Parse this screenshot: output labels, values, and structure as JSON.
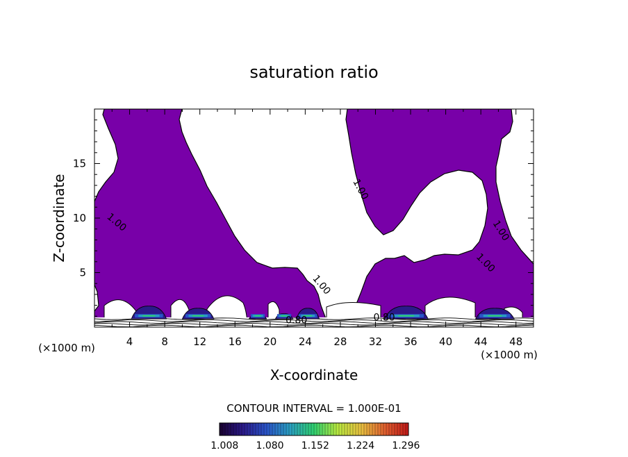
{
  "chart_data": {
    "type": "contour",
    "title": "saturation ratio",
    "xlabel": "X-coordinate",
    "ylabel": "Z-coordinate",
    "x_unit_left": "(×1000 m)",
    "x_unit_right": "(×1000 m)",
    "xlim": [
      0,
      50
    ],
    "ylim": [
      0,
      20
    ],
    "xticks": [
      "4",
      "8",
      "12",
      "16",
      "20",
      "24",
      "28",
      "32",
      "36",
      "40",
      "44",
      "48"
    ],
    "yticks": [
      "5",
      "10",
      "15"
    ],
    "xtick_values": [
      4,
      8,
      12,
      16,
      20,
      24,
      28,
      32,
      36,
      40,
      44,
      48
    ],
    "ytick_values": [
      5,
      10,
      15
    ],
    "contour_interval_text": "CONTOUR INTERVAL = 1.000E-01",
    "contour_labels": [
      {
        "text": "1.00",
        "x": 2.3,
        "z": 9.4,
        "angle": 40
      },
      {
        "text": "1.00",
        "x": 30.0,
        "z": 12.5,
        "angle": 62
      },
      {
        "text": "1.00",
        "x": 25.6,
        "z": 3.7,
        "angle": 50
      },
      {
        "text": "1.00",
        "x": 46.0,
        "z": 8.7,
        "angle": 58
      },
      {
        "text": "1.00",
        "x": 44.3,
        "z": 5.7,
        "angle": 45
      },
      {
        "text": "0.80",
        "x": 23.0,
        "z": 0.35,
        "angle": 0
      },
      {
        "text": "0.80",
        "x": 33.0,
        "z": 0.6,
        "angle": 0
      }
    ],
    "colorbar": {
      "tick_labels": [
        "1.008",
        "1.080",
        "1.152",
        "1.224",
        "1.296"
      ],
      "range": [
        1.0,
        1.3
      ],
      "colors": [
        "#1a0030",
        "#2b1a8a",
        "#2a55c8",
        "#2aa0c0",
        "#30d070",
        "#b8e840",
        "#e8c040",
        "#e06030",
        "#c01818"
      ]
    },
    "fill_color": "#7800a8",
    "clouds": [
      {
        "x0": 4.2,
        "x1": 8.2,
        "peak": 1.8
      },
      {
        "x0": 10.0,
        "x1": 13.6,
        "peak": 1.6
      },
      {
        "x0": 17.6,
        "x1": 19.6,
        "peak": 1.0
      },
      {
        "x0": 20.6,
        "x1": 22.6,
        "peak": 1.1
      },
      {
        "x0": 23.0,
        "x1": 25.6,
        "peak": 1.6
      },
      {
        "x0": 33.0,
        "x1": 38.0,
        "peak": 1.8
      },
      {
        "x0": 43.4,
        "x1": 47.8,
        "peak": 1.6
      }
    ]
  }
}
